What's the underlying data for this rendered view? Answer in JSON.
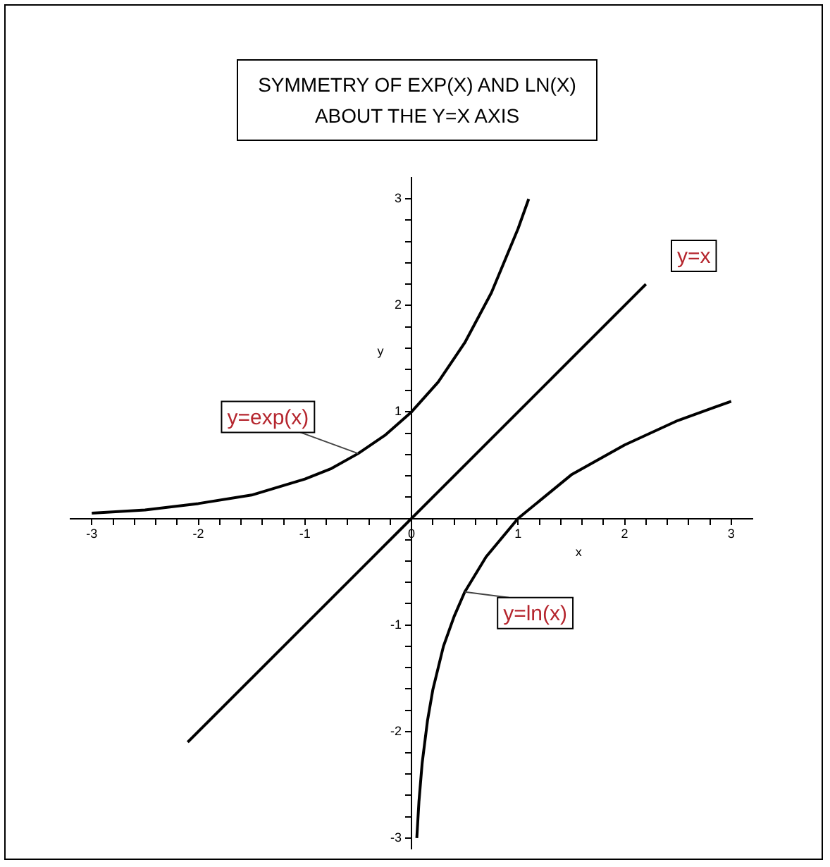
{
  "chart_data": {
    "type": "line",
    "title": "SYMMETRY OF EXP(X) AND LN(X)\nABOUT THE Y=X AXIS",
    "xlabel": "x",
    "ylabel": "y",
    "legend": false,
    "grid": false,
    "marker": "none",
    "line_style": "solid",
    "xlim": [
      -3.2,
      3.2
    ],
    "ylim": [
      -3.1,
      3.2
    ],
    "xticks": [
      -3,
      {
        "value": -2.8,
        "label": null
      },
      {
        "value": -2.6,
        "label": null
      },
      {
        "value": -2.4,
        "label": null
      },
      {
        "value": -2.2,
        "label": null
      },
      -2,
      {
        "value": -1.8,
        "label": null
      },
      {
        "value": -1.6,
        "label": null
      },
      {
        "value": -1.4,
        "label": null
      },
      {
        "value": -1.2,
        "label": null
      },
      -1,
      {
        "value": -0.8,
        "label": null
      },
      {
        "value": -0.6,
        "label": null
      },
      {
        "value": -0.4,
        "label": null
      },
      {
        "value": -0.2,
        "label": null
      },
      0,
      {
        "value": 0.2,
        "label": null
      },
      {
        "value": 0.4,
        "label": null
      },
      {
        "value": 0.6,
        "label": null
      },
      {
        "value": 0.8,
        "label": null
      },
      1,
      {
        "value": 1.2,
        "label": null
      },
      {
        "value": 1.4,
        "label": null
      },
      {
        "value": 1.6,
        "label": null
      },
      {
        "value": 1.8,
        "label": null
      },
      2,
      {
        "value": 2.2,
        "label": null
      },
      {
        "value": 2.4,
        "label": null
      },
      {
        "value": 2.6,
        "label": null
      },
      {
        "value": 2.8,
        "label": null
      },
      3
    ],
    "yticks": [
      -3,
      {
        "value": -2.8,
        "label": null
      },
      {
        "value": -2.6,
        "label": null
      },
      {
        "value": -2.4,
        "label": null
      },
      {
        "value": -2.2,
        "label": null
      },
      -2,
      {
        "value": -1.8,
        "label": null
      },
      {
        "value": -1.6,
        "label": null
      },
      {
        "value": -1.4,
        "label": null
      },
      {
        "value": -1.2,
        "label": null
      },
      -1,
      {
        "value": -0.8,
        "label": null
      },
      {
        "value": -0.6,
        "label": null
      },
      {
        "value": -0.4,
        "label": null
      },
      {
        "value": -0.2,
        "label": null
      },
      {
        "value": 0,
        "label": null
      },
      {
        "value": 0.2,
        "label": null
      },
      {
        "value": 0.4,
        "label": null
      },
      {
        "value": 0.6,
        "label": null
      },
      {
        "value": 0.8,
        "label": null
      },
      1,
      {
        "value": 1.2,
        "label": null
      },
      {
        "value": 1.4,
        "label": null
      },
      {
        "value": 1.6,
        "label": null
      },
      {
        "value": 1.8,
        "label": null
      },
      2,
      {
        "value": 2.2,
        "label": null
      },
      {
        "value": 2.4,
        "label": null
      },
      {
        "value": 2.6,
        "label": null
      },
      {
        "value": 2.8,
        "label": null
      },
      3
    ],
    "series": [
      {
        "name": "y=exp(x)",
        "color": "#000000",
        "x": [
          -3,
          -2.5,
          -2,
          -1.5,
          -1,
          -0.75,
          -0.5,
          -0.25,
          0,
          0.25,
          0.5,
          0.75,
          1,
          1.1
        ],
        "values": [
          0.05,
          0.08,
          0.14,
          0.22,
          0.37,
          0.47,
          0.61,
          0.78,
          1,
          1.28,
          1.65,
          2.12,
          2.72,
          3.0
        ]
      },
      {
        "name": "y=x",
        "color": "#000000",
        "x": [
          -2.1,
          2.2
        ],
        "values": [
          -2.1,
          2.2
        ]
      },
      {
        "name": "y=ln(x)",
        "color": "#000000",
        "x": [
          0.05,
          0.07,
          0.1,
          0.15,
          0.2,
          0.3,
          0.4,
          0.5,
          0.7,
          1,
          1.5,
          2,
          2.5,
          3
        ],
        "values": [
          -3.0,
          -2.66,
          -2.3,
          -1.9,
          -1.61,
          -1.2,
          -0.92,
          -0.69,
          -0.36,
          0,
          0.41,
          0.69,
          0.92,
          1.1
        ]
      }
    ]
  }
}
